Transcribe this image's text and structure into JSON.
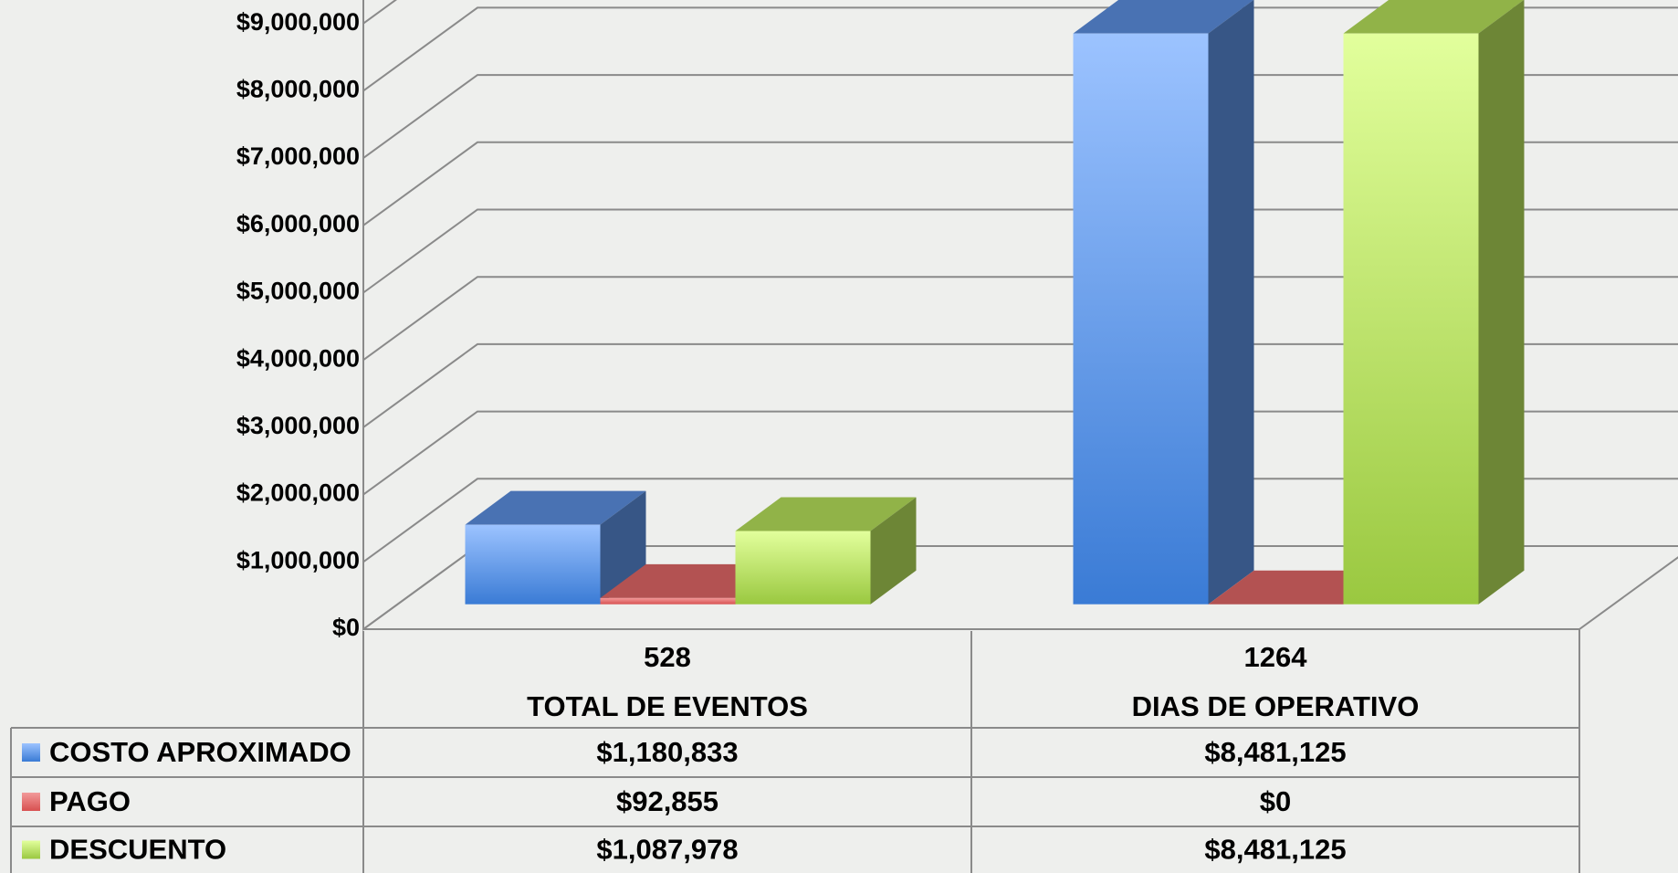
{
  "chart_data": {
    "type": "bar3d",
    "categories": [
      [
        "528",
        "TOTAL DE EVENTOS"
      ],
      [
        "1264",
        "DIAS DE OPERATIVO"
      ]
    ],
    "series": [
      {
        "name": "COSTO APROXIMADO",
        "color": "#5b8fe0",
        "values": [
          1180833,
          8481125
        ],
        "value_labels": [
          "$1,180,833",
          "$8,481,125"
        ]
      },
      {
        "name": "PAGO",
        "color": "#e06666",
        "values": [
          92855,
          0
        ],
        "value_labels": [
          "$92,855",
          "$0"
        ]
      },
      {
        "name": "DESCUENTO",
        "color": "#b5e05a",
        "values": [
          1087978,
          8481125
        ],
        "value_labels": [
          "$1,087,978",
          "$8,481,125"
        ]
      }
    ],
    "ylim": [
      0,
      10000000
    ],
    "yticks": [
      {
        "value": 0,
        "label": "$0"
      },
      {
        "value": 1000000,
        "label": "$1,000,000"
      },
      {
        "value": 2000000,
        "label": "$2,000,000"
      },
      {
        "value": 3000000,
        "label": "$3,000,000"
      },
      {
        "value": 4000000,
        "label": "$4,000,000"
      },
      {
        "value": 5000000,
        "label": "$5,000,000"
      },
      {
        "value": 6000000,
        "label": "$6,000,000"
      },
      {
        "value": 7000000,
        "label": "$7,000,000"
      },
      {
        "value": 8000000,
        "label": "$8,000,000"
      },
      {
        "value": 9000000,
        "label": "$9,000,000"
      }
    ],
    "grid": true,
    "legend": "table"
  }
}
